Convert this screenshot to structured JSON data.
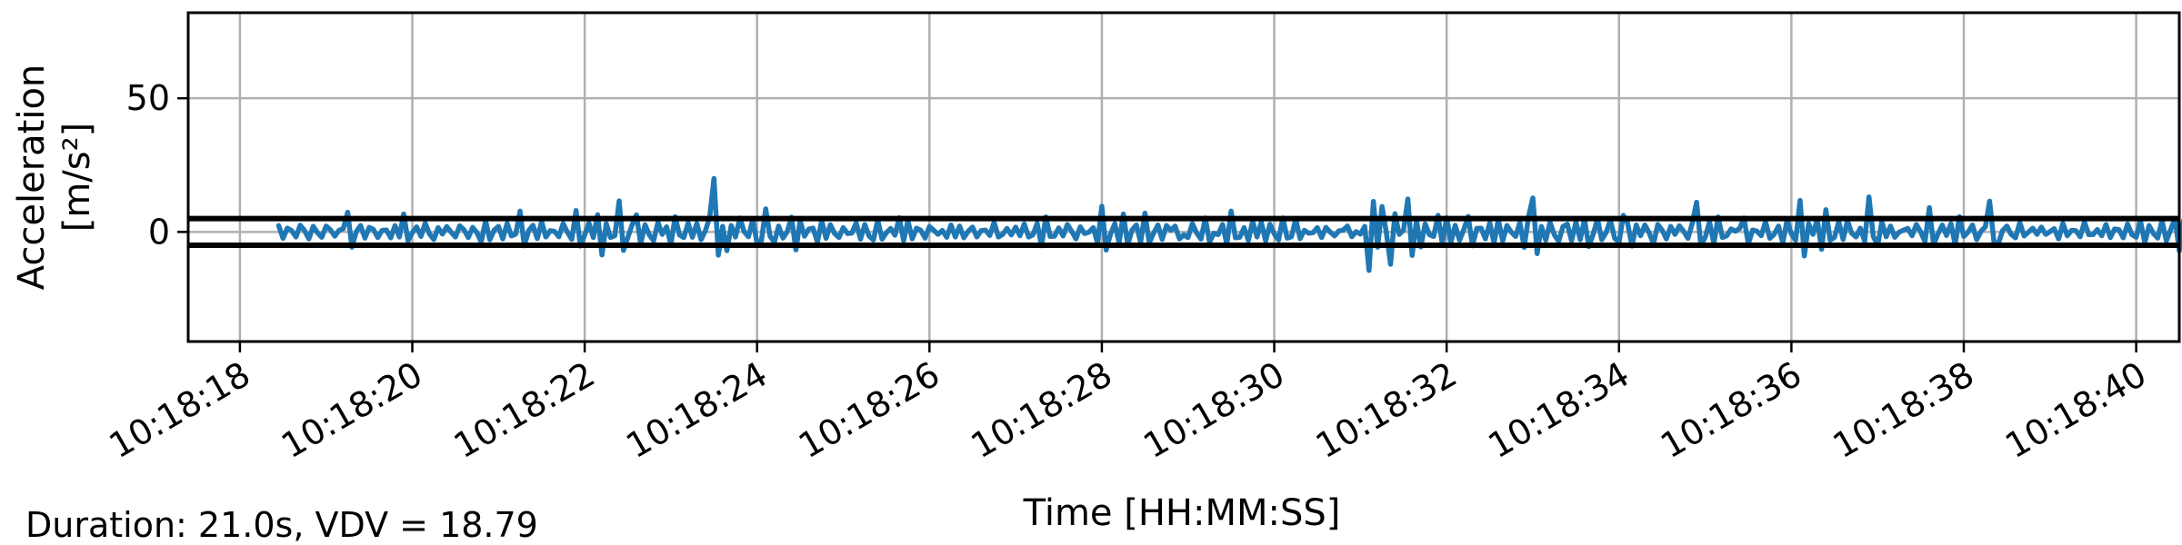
{
  "chart_data": {
    "type": "line",
    "xlabel": "Time [HH:MM:SS]",
    "ylabel_line1": "Acceleration",
    "ylabel_line2": "[m/s²]",
    "x_ticks": [
      "10:18:18",
      "10:18:20",
      "10:18:22",
      "10:18:24",
      "10:18:26",
      "10:18:28",
      "10:18:30",
      "10:18:32",
      "10:18:34",
      "10:18:36",
      "10:18:38",
      "10:18:40"
    ],
    "y_ticks": [
      0,
      50
    ],
    "xlim": [
      "10:18:17.4",
      "10:18:40.5"
    ],
    "ylim": [
      -41,
      82
    ],
    "grid": true,
    "series": [
      {
        "color": "#1f77b4",
        "x_start": "10:18:18.45",
        "sample_interval_s": 0.05,
        "values": [
          2.4,
          -2.4,
          1.4,
          0.5,
          -1.9,
          2.5,
          0.5,
          -2.6,
          2.1,
          -0.3,
          -2.0,
          2.2,
          0.8,
          -1.6,
          0.6,
          1.2,
          7.4,
          -5.7,
          0.1,
          2.4,
          -2.3,
          1.7,
          0.9,
          -2.1,
          0.6,
          0.7,
          -2.2,
          2.4,
          -1.9,
          6.7,
          -3.3,
          -0.3,
          1.9,
          -1.7,
          3.3,
          -0.8,
          -2.8,
          1.6,
          -0.8,
          2.0,
          -0.1,
          -1.9,
          2.3,
          0.8,
          -2.1,
          1.7,
          -0.3,
          -3.8,
          4.2,
          -2.9,
          0.7,
          2.1,
          -2.6,
          3.2,
          -1.5,
          -0.8,
          7.8,
          -5.2,
          0.5,
          2.5,
          -2.5,
          3.9,
          -1.9,
          0.5,
          0.2,
          -1.8,
          3.1,
          -0.1,
          -2.8,
          8.0,
          -5.3,
          -1.1,
          3.3,
          -2.1,
          6.4,
          -8.6,
          3.1,
          -2.1,
          -1.4,
          11.6,
          -6.9,
          -2.1,
          2.6,
          6.4,
          -4.4,
          2.7,
          -1.1,
          -3.3,
          3.6,
          -0.9,
          1.9,
          -4.7,
          5.7,
          -1.1,
          -2.1,
          3.3,
          -2.0,
          3.2,
          -2.9,
          0.4,
          5.5,
          20.0,
          -8.7,
          2.1,
          -7.0,
          2.4,
          -1.9,
          5.2,
          0.1,
          -1.8,
          4.6,
          -4.2,
          -3.3,
          8.6,
          -1.5,
          -3.9,
          2.2,
          -2.3,
          0.1,
          5.5,
          -6.7,
          4.2,
          -1.6,
          1.1,
          1.4,
          -3.8,
          4.2,
          -2.4,
          2.7,
          -0.6,
          -2.1,
          1.6,
          -0.6,
          -0.4,
          3.4,
          -2.7,
          2.8,
          -1.6,
          -3.0,
          4.5,
          -2.7,
          -0.3,
          1.3,
          -1.2,
          5.3,
          -3.3,
          4.2,
          -2.6,
          1.4,
          0.6,
          -2.3,
          2.0,
          0.6,
          -0.9,
          0.6,
          -2.0,
          2.6,
          -1.9,
          2.2,
          -2.2,
          0.3,
          1.8,
          -1.9,
          0.5,
          0.7,
          -1.3,
          3.6,
          -1.9,
          -0.9,
          1.3,
          -1.1,
          1.8,
          -1.4,
          3.0,
          -1.9,
          -1.1,
          3.2,
          -5.2,
          5.6,
          -1.7,
          -1.6,
          1.5,
          -1.5,
          2.8,
          0.2,
          -2.6,
          1.9,
          -0.6,
          -0.1,
          1.6,
          -4.2,
          9.6,
          -6.8,
          -0.9,
          3.1,
          -4.1,
          6.7,
          -4.9,
          0.7,
          2.6,
          -3.9,
          7.0,
          -4.1,
          -0.5,
          2.6,
          -2.8,
          2.4,
          0.6,
          2.2,
          -2.6,
          -1.1,
          -2.1,
          3.1,
          -0.4,
          -2.7,
          5.2,
          -3.8,
          -0.5,
          -1.0,
          2.8,
          -4.6,
          7.8,
          -2.2,
          -2.0,
          1.6,
          -3.2,
          4.0,
          -1.9,
          3.6,
          -3.4,
          2.9,
          -0.7,
          -3.0,
          5.2,
          -2.3,
          -1.8,
          4.8,
          -2.5,
          0.6,
          -0.5,
          -0.3,
          1.6,
          -2.1,
          1.7,
          -0.1,
          -1.5,
          0.4,
          0.7,
          2.2,
          -1.8,
          0.1,
          -0.8,
          2.1,
          -14.4,
          11.4,
          -5.7,
          9.5,
          -0.1,
          -12.1,
          6.8,
          -0.9,
          0.7,
          12.3,
          -8.8,
          4.3,
          -5.6,
          3.0,
          -1.0,
          -1.7,
          6.2,
          -4.4,
          5.3,
          -3.9,
          2.5,
          -3.1,
          0.9,
          5.8,
          -5.2,
          1.3,
          1.4,
          -2.6,
          3.4,
          -4.1,
          4.6,
          -3.4,
          2.4,
          -0.1,
          -1.7,
          3.5,
          -5.8,
          5.7,
          12.7,
          -8.1,
          2.0,
          -3.1,
          3.6,
          -1.1,
          -3.5,
          2.0,
          2.9,
          -3.3,
          3.7,
          -2.9,
          4.7,
          -5.5,
          -0.9,
          4.8,
          -2.9,
          -0.3,
          4.5,
          -2.4,
          -3.9,
          6.2,
          3.3,
          -5.3,
          2.6,
          -1.4,
          2.6,
          -0.3,
          -4.5,
          2.8,
          0.7,
          -2.6,
          2.1,
          -0.9,
          2.3,
          0.2,
          -2.4,
          3.3,
          11.1,
          -5.0,
          -2.0,
          3.8,
          -4.4,
          5.6,
          -2.1,
          -1.4,
          1.1,
          0.3,
          1.3,
          5.2,
          -4.5,
          0.7,
          0.3,
          -1.4,
          3.9,
          -2.4,
          -0.9,
          2.2,
          -4.1,
          4.4,
          -0.8,
          -3.1,
          11.8,
          -9.0,
          3.1,
          -0.9,
          4.6,
          -6.5,
          8.3,
          -3.1,
          -2.0,
          3.9,
          -2.8,
          4.3,
          -0.5,
          -1.9,
          1.4,
          -3.5,
          13.1,
          -1.6,
          -5.1,
          3.7,
          -1.8,
          2.2,
          -2.0,
          -0.1,
          0.7,
          1.3,
          -1.4,
          2.8,
          0.0,
          -3.7,
          9.1,
          -4.8,
          -0.8,
          2.6,
          -1.3,
          3.1,
          -4.8,
          5.7,
          -1.7,
          -0.1,
          2.6,
          -2.9,
          0.2,
          1.9,
          11.5,
          -3.8,
          -4.5,
          0.5,
          2.2,
          -0.9,
          -2.2,
          3.5,
          -1.5,
          -0.1,
          1.4,
          -0.9,
          1.8,
          -0.9,
          0.1,
          1.2,
          -2.6,
          3.2,
          -1.4,
          0.6,
          0.5,
          -1.8,
          3.7,
          -1.0,
          -1.0,
          0.9,
          -1.4,
          2.8,
          -2.1,
          1.1,
          0.9,
          -2.2,
          3.0,
          -1.0,
          -2.0,
          4.2,
          -4.1,
          2.4,
          -0.6,
          -2.3,
          4.3,
          -3.4,
          0.8,
          5.1,
          -7.1,
          4.3,
          -1.6,
          1.2,
          10.2,
          -9.2,
          3.2,
          -2.2,
          1.4,
          1.9,
          -3.2,
          3.1,
          -2.8,
          9.8,
          -6.9,
          1.9,
          -1.1,
          3.3,
          -4.9,
          4.8,
          -0.9,
          -2.3,
          13.1,
          -5.1,
          -2.6,
          2.6,
          -1.7,
          3.5,
          -3.1,
          1.4,
          2.5,
          -4.0,
          4.2,
          13.4,
          -8.6,
          1.3,
          -2.0,
          5.4,
          -3.8,
          3.4,
          -3.9,
          -1.7,
          5.4,
          -2.6,
          0.7,
          -2.0,
          11.8,
          -8.8,
          4.0,
          -3.3,
          2.4,
          -0.6,
          -1.8,
          1.9,
          -0.7,
          2.4,
          -3.6,
          3.6,
          -2.7,
          0.7,
          0.8,
          -2.1,
          3.2,
          4.1,
          -4.3,
          3.4,
          -0.7,
          -2.9,
          1.9,
          5.7,
          -2.6,
          1.7,
          -4.0,
          8.0,
          -4.5,
          0.5,
          -0.8,
          1.4,
          5.7,
          -7.1,
          2.7,
          -1.5,
          0.5,
          2.0,
          8.6,
          -10.2,
          4.5,
          -0.7,
          10.8,
          -8.8,
          3.1,
          -3.2,
          2.6,
          -0.9,
          12.9,
          -6.7,
          -3.5,
          3.8,
          -2.4,
          2.5,
          -1.2,
          -4.1,
          9.6,
          -5.0,
          3.8,
          -3.6,
          5.4,
          8.2,
          -2.7,
          -11.1,
          2.7,
          -3.8,
          14.6,
          -9.8,
          8.0,
          -3.1,
          -2.2,
          5.0,
          -4.0,
          -1.5,
          3.3,
          -1.8,
          1.0,
          4.8,
          -0.4,
          -2.1,
          0.0,
          5.1,
          -2.0,
          -3.4,
          11.9,
          -5.4,
          9.8,
          -9.6,
          2.6,
          1.6,
          -3.1,
          2.1,
          3.2,
          -3.8,
          2.6,
          -5.7,
          5.0,
          -4.3,
          4.8,
          -8.5,
          5.2,
          7.8,
          28.4,
          -2.8,
          -20.3,
          19.6,
          -27.2,
          76.6,
          -36.2,
          10.8,
          -4.9,
          7.8,
          -12.6,
          19.2,
          -3.1,
          31.9,
          -2.5,
          -12.1,
          3.3,
          -3.2,
          23.0,
          -6.9,
          2.5,
          -12.0,
          19.8,
          -2.9,
          -6.3,
          2.1,
          12.3,
          -5.1,
          -2.3,
          2.4,
          7.6,
          2.1,
          -4.4,
          1.3,
          1.9,
          -1.6,
          -3.6,
          6.6,
          -3.7,
          1.6,
          -3.2,
          5.4,
          -0.8,
          -2.5,
          3.7,
          -2.2,
          2.0,
          -2.3,
          -0.4,
          2.6,
          -2.1,
          0.8,
          2.2,
          -3.0,
          4.6,
          -1.8,
          -1.4,
          2.5,
          -2.5,
          0.6,
          4.3,
          -3.1,
          0.2,
          1.7,
          -2.5,
          3.1,
          -0.6,
          2.4,
          -3.4,
          3.5,
          -5.1,
          6.7,
          -4.9,
          3.3,
          -0.1,
          5.6,
          -7.9,
          8.5,
          1.0,
          -3.4,
          5.4,
          -5.2,
          -0.1,
          4.6,
          -3.7,
          2.3,
          1.4,
          4.2,
          -4.8,
          1.8,
          -3.2,
          4.5,
          -0.2,
          -1.8,
          4.5,
          -6.5,
          6.0,
          -2.4,
          1.4,
          13.5,
          -6.4,
          -2.6,
          8.1,
          12.6,
          -0.9,
          -5.8,
          27.0,
          -2.9,
          -9.0,
          15.6,
          -5.8,
          -2.8,
          10.6,
          -11.3,
          4.3,
          8.9,
          -8.3,
          10.4,
          -4.3,
          3.9,
          23.0,
          -7.2,
          9.4,
          -9.0,
          -2.0,
          6.7,
          -10.7,
          2.2,
          16.0,
          -4.4,
          2.6,
          -5.0,
          7.3,
          -10.2,
          2.1,
          19.7,
          -2.4,
          7.0,
          -4.6,
          6.8,
          15.4,
          -9.0,
          0.8,
          7.3,
          37.9,
          -13.9,
          -19.9,
          24.6,
          -8.5,
          -29.9,
          13.5,
          -8.3,
          10.0,
          -2.8,
          9.9,
          -3.0,
          6.5,
          19.8,
          -7.8,
          -0.3,
          7.9,
          -5.5,
          4.8,
          -3.1,
          8.3,
          -2.9,
          0.5,
          6.4,
          -2.1,
          8.4,
          -4.9,
          2.6,
          5.9,
          -3.2,
          6.4,
          -2.0,
          -6.7,
          11.8,
          -1.4,
          5.8,
          16.8,
          -5.9,
          1.9,
          0.3
        ]
      }
    ],
    "threshold_lines": [
      5,
      -5
    ]
  },
  "footer_text": "Duration: 21.0s, VDV = 18.79"
}
